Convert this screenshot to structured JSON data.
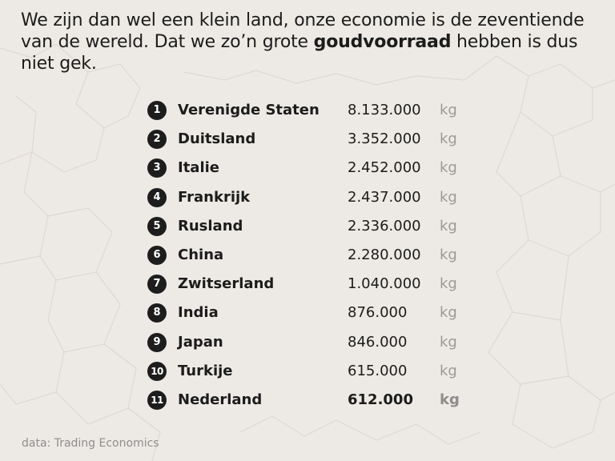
{
  "headline": {
    "line_part1": "We zijn dan wel een klein land, onze economie is de zeventiende van de wereld. Dat we zo’n grote ",
    "highlight": "goudvoorraad",
    "line_part2": " hebben is dus niet gek."
  },
  "ranking": [
    {
      "rank": "1",
      "country": "Verenigde Staten",
      "value": "8.133.000",
      "unit": "kg",
      "highlight": false
    },
    {
      "rank": "2",
      "country": "Duitsland",
      "value": "3.352.000",
      "unit": "kg",
      "highlight": false
    },
    {
      "rank": "3",
      "country": "Italie",
      "value": "2.452.000",
      "unit": "kg",
      "highlight": false
    },
    {
      "rank": "4",
      "country": "Frankrijk",
      "value": "2.437.000",
      "unit": "kg",
      "highlight": false
    },
    {
      "rank": "5",
      "country": "Rusland",
      "value": "2.336.000",
      "unit": "kg",
      "highlight": false
    },
    {
      "rank": "6",
      "country": "China",
      "value": "2.280.000",
      "unit": "kg",
      "highlight": false
    },
    {
      "rank": "7",
      "country": "Zwitserland",
      "value": "1.040.000",
      "unit": "kg",
      "highlight": false
    },
    {
      "rank": "8",
      "country": "India",
      "value": "876.000",
      "unit": "kg",
      "highlight": false
    },
    {
      "rank": "9",
      "country": "Japan",
      "value": "846.000",
      "unit": "kg",
      "highlight": false
    },
    {
      "rank": "10",
      "country": "Turkije",
      "value": "615.000",
      "unit": "kg",
      "highlight": false
    },
    {
      "rank": "11",
      "country": "Nederland",
      "value": "612.000",
      "unit": "kg",
      "highlight": true
    }
  ],
  "source": "data: Trading Economics",
  "colors": {
    "background": "#edeae5",
    "badge": "#1d1d1d",
    "text": "#1c1c1c",
    "unit": "#9a9a9a",
    "source": "#8e8e8e"
  }
}
